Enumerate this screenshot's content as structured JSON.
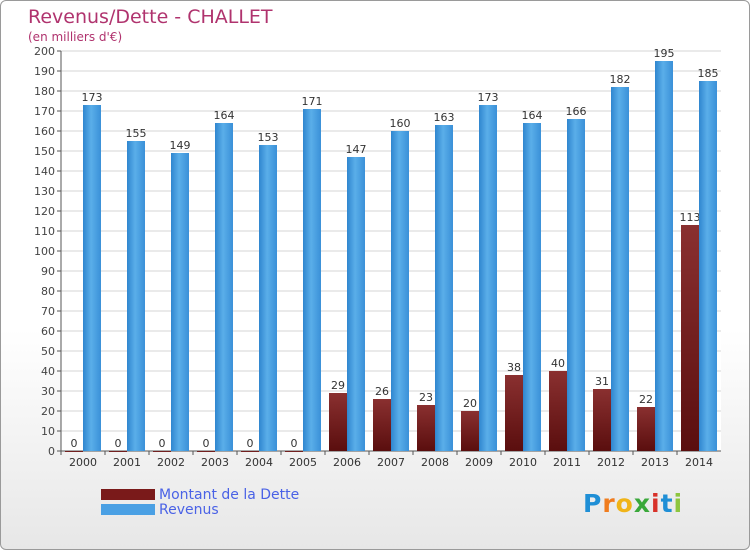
{
  "title": "Revenus/Dette - CHALLET",
  "subtitle": "(en milliers d'€)",
  "chart_data": {
    "type": "bar",
    "categories": [
      "2000",
      "2001",
      "2002",
      "2003",
      "2004",
      "2005",
      "2006",
      "2007",
      "2008",
      "2009",
      "2010",
      "2011",
      "2012",
      "2013",
      "2014"
    ],
    "series": [
      {
        "name": "Montant de la Dette",
        "color": "#7a1a1a",
        "values": [
          0,
          0,
          0,
          0,
          0,
          0,
          29,
          26,
          23,
          20,
          38,
          40,
          31,
          22,
          113
        ]
      },
      {
        "name": "Revenus",
        "color": "#4aa0e4",
        "values": [
          173,
          155,
          149,
          164,
          153,
          171,
          147,
          160,
          163,
          173,
          164,
          166,
          182,
          195,
          185
        ]
      }
    ],
    "ylim": [
      0,
      200
    ],
    "yticks": [
      0,
      10,
      20,
      30,
      40,
      50,
      60,
      70,
      80,
      90,
      100,
      110,
      120,
      130,
      140,
      150,
      160,
      170,
      180,
      190,
      200
    ],
    "grid": true
  },
  "legend": {
    "items": [
      {
        "label": "Montant de la Dette",
        "color": "#7a1a1a"
      },
      {
        "label": "Revenus",
        "color": "#4aa0e4"
      }
    ]
  },
  "logo": {
    "letters": [
      {
        "char": "P",
        "color": "#1f8fd6"
      },
      {
        "char": "r",
        "color": "#f07c1e"
      },
      {
        "char": "o",
        "color": "#f0b418"
      },
      {
        "char": "x",
        "color": "#3aa83a"
      },
      {
        "char": "i",
        "color": "#d8322a"
      },
      {
        "char": "t",
        "color": "#1f8fd6"
      },
      {
        "char": "i",
        "color": "#8dc63f"
      }
    ]
  }
}
